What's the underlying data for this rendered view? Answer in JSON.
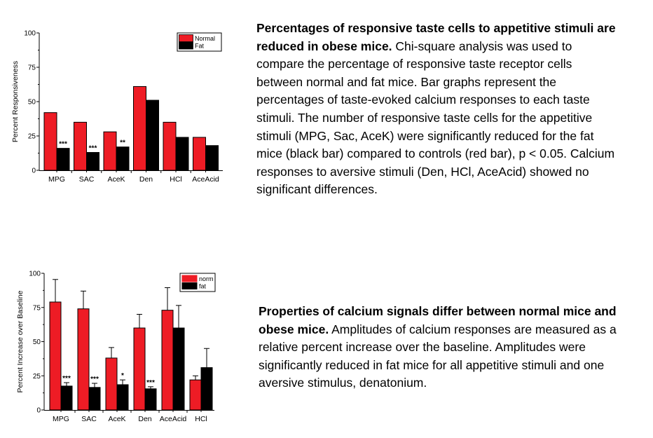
{
  "chart_data": [
    {
      "type": "bar",
      "title": "",
      "xlabel": "",
      "ylabel": "Percent Responsiveness",
      "ylim": [
        0,
        100
      ],
      "yticks": [
        0,
        25,
        50,
        75,
        100
      ],
      "categories": [
        "MPG",
        "SAC",
        "AceK",
        "Den",
        "HCl",
        "AceAcid"
      ],
      "series": [
        {
          "name": "Normal",
          "color": "#ee1c25",
          "values": [
            42,
            35,
            28,
            61,
            35,
            24
          ]
        },
        {
          "name": "Fat",
          "color": "#000000",
          "values": [
            16,
            13,
            17,
            51,
            24,
            18
          ]
        }
      ],
      "annotations": [
        {
          "category": "MPG",
          "series": "Fat",
          "text": "***"
        },
        {
          "category": "SAC",
          "series": "Fat",
          "text": "***"
        },
        {
          "category": "AceK",
          "series": "Fat",
          "text": "**"
        }
      ],
      "legend": {
        "position": "top-right",
        "entries": [
          "Normal",
          "Fat"
        ]
      },
      "grid": false
    },
    {
      "type": "bar",
      "title": "",
      "xlabel": "",
      "ylabel": "Percent Increase over Baseline",
      "ylim": [
        0,
        100
      ],
      "yticks": [
        0,
        25,
        50,
        75,
        100
      ],
      "categories": [
        "MPG",
        "SAC",
        "AceK",
        "Den",
        "AceAcid",
        "HCl"
      ],
      "series": [
        {
          "name": "norm",
          "color": "#ee1c25",
          "values": [
            79,
            74,
            38,
            60,
            73,
            22
          ],
          "error": [
            16.5,
            13,
            7.7,
            10,
            16.5,
            3
          ]
        },
        {
          "name": "fat",
          "color": "#000000",
          "values": [
            17.5,
            16.5,
            18.5,
            15.5,
            60,
            31
          ],
          "error": [
            2.5,
            3,
            3.5,
            1.5,
            16.5,
            14
          ]
        }
      ],
      "annotations": [
        {
          "category": "MPG",
          "series": "fat",
          "text": "***"
        },
        {
          "category": "SAC",
          "series": "fat",
          "text": "***"
        },
        {
          "category": "AceK",
          "series": "fat",
          "text": "*"
        },
        {
          "category": "Den",
          "series": "fat",
          "text": "***"
        }
      ],
      "legend": {
        "position": "top-right",
        "entries": [
          "norm",
          "fat"
        ]
      },
      "grid": false
    }
  ],
  "captions": [
    {
      "bold": "Percentages of responsive taste cells to appetitive stimuli are reduced in obese mice.",
      "body": " Chi-square analysis was used to compare the percentage of responsive taste receptor cells between normal and fat mice. Bar graphs represent the percentages of taste-evoked calcium responses to each taste stimuli. The number of responsive taste cells for the appetitive stimuli (MPG, Sac, AceK) were significantly reduced for the fat mice (black bar) compared to controls (red bar), p < 0.05. Calcium responses to aversive stimuli (Den, HCl, AceAcid) showed no significant differences."
    },
    {
      "bold": "Properties of calcium signals differ between normal mice and obese mice.",
      "body": " Amplitudes of calcium responses are measured as a relative percent increase over the baseline. Amplitudes were significantly reduced in fat mice for all appetitive stimuli and one aversive stimulus, denatonium."
    }
  ]
}
